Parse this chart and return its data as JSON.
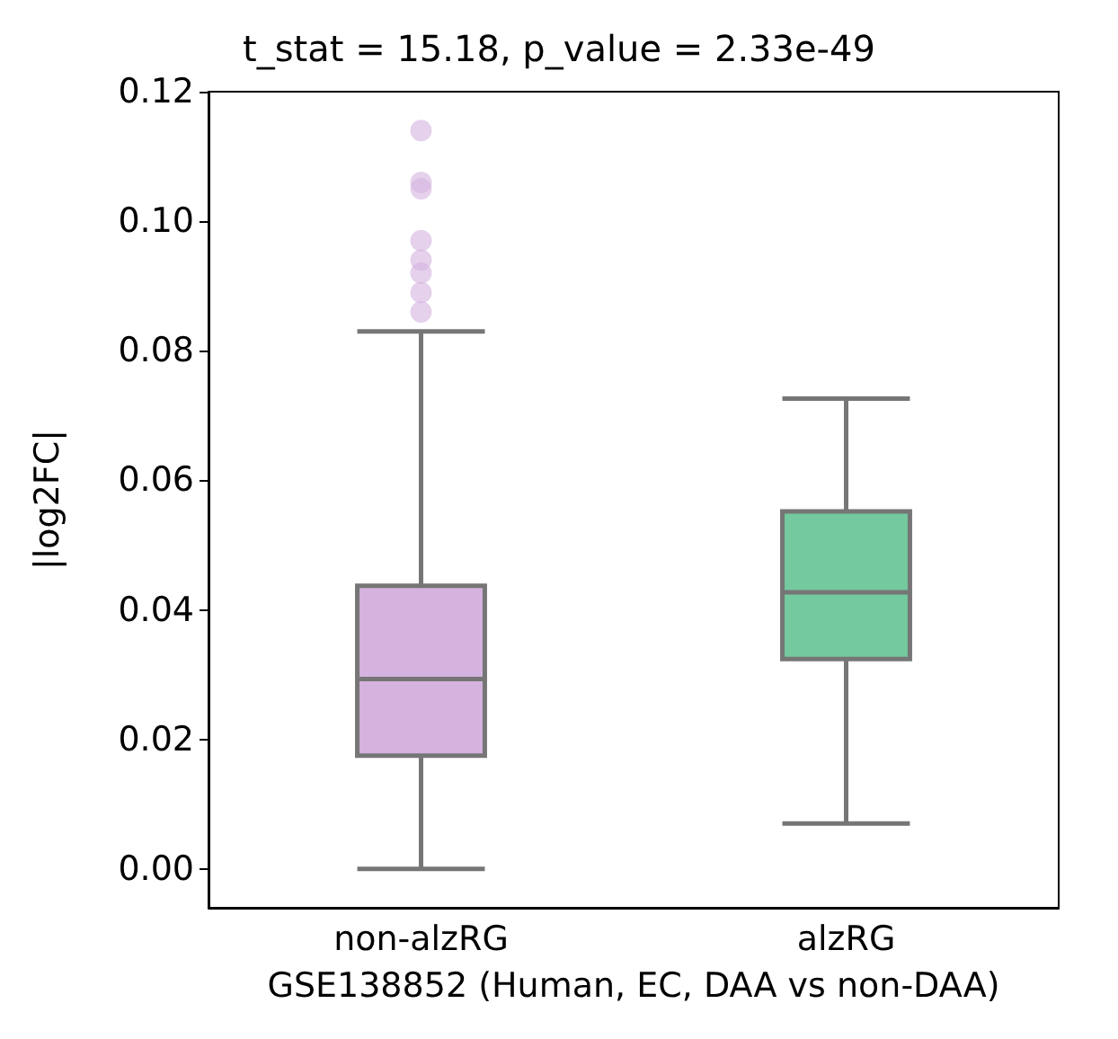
{
  "chart_data": {
    "type": "box",
    "title": "t_stat = 15.18, p_value = 2.33e-49",
    "xlabel": "GSE138852 (Human, EC, DAA vs non-DAA)",
    "ylabel": "|log2FC|",
    "categories": [
      "non-alzRG",
      "alzRG"
    ],
    "colors": [
      "#d4b3df",
      "#74c99e"
    ],
    "boxes": [
      {
        "low": 0,
        "q1": 0.0175,
        "median": 0.0293,
        "q3": 0.0437,
        "high": 0.083,
        "outliers": [
          0.114,
          0.106,
          0.105,
          0.097,
          0.094,
          0.092,
          0.089,
          0.086
        ]
      },
      {
        "low": 0.007,
        "q1": 0.0324,
        "median": 0.0427,
        "q3": 0.0552,
        "high": 0.0726
      }
    ],
    "ylim": [
      -0.006,
      0.12
    ],
    "yticks": [
      {
        "value": 0,
        "label": "0.00"
      },
      0.02,
      0.04,
      0.06,
      0.08,
      {
        "value": 0.1,
        "label": "0.10"
      },
      0.12
    ],
    "grid": false
  }
}
